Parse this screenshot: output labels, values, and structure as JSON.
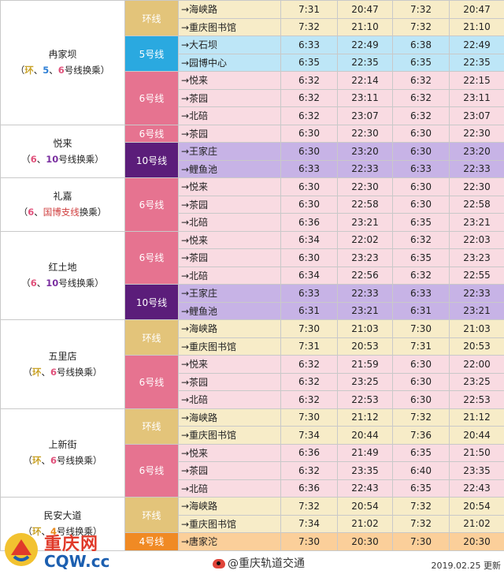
{
  "stations": [
    {
      "name": "冉家坝",
      "transfer": [
        {
          "t": "（",
          "c": ""
        },
        {
          "t": "环",
          "c": "c-loop"
        },
        {
          "t": "、",
          "c": ""
        },
        {
          "t": "5",
          "c": "c-5"
        },
        {
          "t": "、",
          "c": ""
        },
        {
          "t": "6",
          "c": "c-6"
        },
        {
          "t": "号线换乘）",
          "c": ""
        }
      ],
      "lines": [
        {
          "label": "环线",
          "color": "#e3c47a",
          "textColor": "#ffffff",
          "rows": [
            {
              "dir": "→海峡路",
              "rowColor": "#f7ecc8",
              "t": [
                "7:31",
                "20:47",
                "7:32",
                "20:47"
              ]
            },
            {
              "dir": "→重庆图书馆",
              "rowColor": "#f7ecc8",
              "t": [
                "7:32",
                "21:10",
                "7:32",
                "21:10"
              ]
            }
          ]
        },
        {
          "label": "5号线",
          "color": "#2aa9e0",
          "textColor": "#ffffff",
          "rows": [
            {
              "dir": "→大石坝",
              "rowColor": "#bde6f7",
              "t": [
                "6:33",
                "22:49",
                "6:38",
                "22:49"
              ]
            },
            {
              "dir": "→园博中心",
              "rowColor": "#bde6f7",
              "t": [
                "6:35",
                "22:35",
                "6:35",
                "22:35"
              ]
            }
          ]
        },
        {
          "label": "6号线",
          "color": "#e67390",
          "textColor": "#ffffff",
          "rows": [
            {
              "dir": "→悦来",
              "rowColor": "#f9dbe2",
              "t": [
                "6:32",
                "22:14",
                "6:32",
                "22:15"
              ]
            },
            {
              "dir": "→茶园",
              "rowColor": "#f9dbe2",
              "t": [
                "6:32",
                "23:11",
                "6:32",
                "23:11"
              ]
            },
            {
              "dir": "→北碚",
              "rowColor": "#f9dbe2",
              "t": [
                "6:32",
                "23:07",
                "6:32",
                "23:07"
              ]
            }
          ]
        }
      ]
    },
    {
      "name": "悦来",
      "transfer": [
        {
          "t": "（",
          "c": ""
        },
        {
          "t": "6",
          "c": "c-6"
        },
        {
          "t": "、",
          "c": ""
        },
        {
          "t": "10",
          "c": "c-10"
        },
        {
          "t": "号线换乘）",
          "c": ""
        }
      ],
      "lines": [
        {
          "label": "6号线",
          "color": "#e67390",
          "textColor": "#ffffff",
          "rows": [
            {
              "dir": "→茶园",
              "rowColor": "#f9dbe2",
              "t": [
                "6:30",
                "22:30",
                "6:30",
                "22:30"
              ]
            }
          ]
        },
        {
          "label": "10号线",
          "color": "#5b1d7a",
          "textColor": "#ffffff",
          "rows": [
            {
              "dir": "→王家庄",
              "rowColor": "#c7b3e6",
              "t": [
                "6:30",
                "23:20",
                "6:30",
                "23:20"
              ]
            },
            {
              "dir": "→鲤鱼池",
              "rowColor": "#c7b3e6",
              "t": [
                "6:33",
                "22:33",
                "6:33",
                "22:33"
              ]
            }
          ]
        }
      ]
    },
    {
      "name": "礼嘉",
      "transfer": [
        {
          "t": "（",
          "c": ""
        },
        {
          "t": "6",
          "c": "c-6"
        },
        {
          "t": "、",
          "c": ""
        },
        {
          "t": "国博支线",
          "c": "c-gb"
        },
        {
          "t": "换乘）",
          "c": ""
        }
      ],
      "lines": [
        {
          "label": "6号线",
          "color": "#e67390",
          "textColor": "#ffffff",
          "rows": [
            {
              "dir": "→悦来",
              "rowColor": "#f9dbe2",
              "t": [
                "6:30",
                "22:30",
                "6:30",
                "22:30"
              ]
            },
            {
              "dir": "→茶园",
              "rowColor": "#f9dbe2",
              "t": [
                "6:30",
                "22:58",
                "6:30",
                "22:58"
              ]
            },
            {
              "dir": "→北碚",
              "rowColor": "#f9dbe2",
              "t": [
                "6:36",
                "23:21",
                "6:35",
                "23:21"
              ]
            }
          ]
        }
      ]
    },
    {
      "name": "红土地",
      "transfer": [
        {
          "t": "（",
          "c": ""
        },
        {
          "t": "6",
          "c": "c-6"
        },
        {
          "t": "、",
          "c": ""
        },
        {
          "t": "10",
          "c": "c-10"
        },
        {
          "t": "号线换乘）",
          "c": ""
        }
      ],
      "lines": [
        {
          "label": "6号线",
          "color": "#e67390",
          "textColor": "#ffffff",
          "rows": [
            {
              "dir": "→悦来",
              "rowColor": "#f9dbe2",
              "t": [
                "6:34",
                "22:02",
                "6:32",
                "22:03"
              ]
            },
            {
              "dir": "→茶园",
              "rowColor": "#f9dbe2",
              "t": [
                "6:30",
                "23:23",
                "6:35",
                "23:23"
              ]
            },
            {
              "dir": "→北碚",
              "rowColor": "#f9dbe2",
              "t": [
                "6:34",
                "22:56",
                "6:32",
                "22:55"
              ]
            }
          ]
        },
        {
          "label": "10号线",
          "color": "#5b1d7a",
          "textColor": "#ffffff",
          "rows": [
            {
              "dir": "→王家庄",
              "rowColor": "#c7b3e6",
              "t": [
                "6:33",
                "22:33",
                "6:33",
                "22:33"
              ]
            },
            {
              "dir": "→鲤鱼池",
              "rowColor": "#c7b3e6",
              "t": [
                "6:31",
                "23:21",
                "6:31",
                "23:21"
              ]
            }
          ]
        }
      ]
    },
    {
      "name": "五里店",
      "transfer": [
        {
          "t": "（",
          "c": ""
        },
        {
          "t": "环",
          "c": "c-loop"
        },
        {
          "t": "、",
          "c": ""
        },
        {
          "t": "6",
          "c": "c-6"
        },
        {
          "t": "号线换乘）",
          "c": ""
        }
      ],
      "lines": [
        {
          "label": "环线",
          "color": "#e3c47a",
          "textColor": "#ffffff",
          "rows": [
            {
              "dir": "→海峡路",
              "rowColor": "#f7ecc8",
              "t": [
                "7:30",
                "21:03",
                "7:30",
                "21:03"
              ]
            },
            {
              "dir": "→重庆图书馆",
              "rowColor": "#f7ecc8",
              "t": [
                "7:31",
                "20:53",
                "7:31",
                "20:53"
              ]
            }
          ]
        },
        {
          "label": "6号线",
          "color": "#e67390",
          "textColor": "#ffffff",
          "rows": [
            {
              "dir": "→悦来",
              "rowColor": "#f9dbe2",
              "t": [
                "6:32",
                "21:59",
                "6:30",
                "22:00"
              ]
            },
            {
              "dir": "→茶园",
              "rowColor": "#f9dbe2",
              "t": [
                "6:32",
                "23:25",
                "6:30",
                "23:25"
              ]
            },
            {
              "dir": "→北碚",
              "rowColor": "#f9dbe2",
              "t": [
                "6:32",
                "22:53",
                "6:30",
                "22:53"
              ]
            }
          ]
        }
      ]
    },
    {
      "name": "上新街",
      "transfer": [
        {
          "t": "（",
          "c": ""
        },
        {
          "t": "环",
          "c": "c-loop"
        },
        {
          "t": "、",
          "c": ""
        },
        {
          "t": "6",
          "c": "c-6"
        },
        {
          "t": "号线换乘）",
          "c": ""
        }
      ],
      "lines": [
        {
          "label": "环线",
          "color": "#e3c47a",
          "textColor": "#ffffff",
          "rows": [
            {
              "dir": "→海峡路",
              "rowColor": "#f7ecc8",
              "t": [
                "7:30",
                "21:12",
                "7:32",
                "21:12"
              ]
            },
            {
              "dir": "→重庆图书馆",
              "rowColor": "#f7ecc8",
              "t": [
                "7:34",
                "20:44",
                "7:36",
                "20:44"
              ]
            }
          ]
        },
        {
          "label": "6号线",
          "color": "#e67390",
          "textColor": "#ffffff",
          "rows": [
            {
              "dir": "→悦来",
              "rowColor": "#f9dbe2",
              "t": [
                "6:36",
                "21:49",
                "6:35",
                "21:50"
              ]
            },
            {
              "dir": "→茶园",
              "rowColor": "#f9dbe2",
              "t": [
                "6:32",
                "23:35",
                "6:40",
                "23:35"
              ]
            },
            {
              "dir": "→北碚",
              "rowColor": "#f9dbe2",
              "t": [
                "6:36",
                "22:43",
                "6:35",
                "22:43"
              ]
            }
          ]
        }
      ]
    },
    {
      "name": "民安大道",
      "transfer": [
        {
          "t": "（",
          "c": ""
        },
        {
          "t": "环",
          "c": "c-loop"
        },
        {
          "t": "、",
          "c": ""
        },
        {
          "t": "4",
          "c": "c-4"
        },
        {
          "t": "号线换乘）",
          "c": ""
        }
      ],
      "lines": [
        {
          "label": "环线",
          "color": "#e3c47a",
          "textColor": "#ffffff",
          "rows": [
            {
              "dir": "→海峡路",
              "rowColor": "#f7ecc8",
              "t": [
                "7:32",
                "20:54",
                "7:32",
                "20:54"
              ]
            },
            {
              "dir": "→重庆图书馆",
              "rowColor": "#f7ecc8",
              "t": [
                "7:34",
                "21:02",
                "7:32",
                "21:02"
              ]
            }
          ]
        },
        {
          "label": "4号线",
          "color": "#f08a24",
          "textColor": "#ffffff",
          "rows": [
            {
              "dir": "→唐家沱",
              "rowColor": "#fbcf9a",
              "t": [
                "7:30",
                "20:30",
                "7:30",
                "20:30"
              ]
            }
          ]
        }
      ]
    }
  ],
  "footer": {
    "weibo": "@重庆轨道交通",
    "updated": "2019.02.25 更新",
    "logo_cn": "重庆网",
    "logo_en": "CQW.cc"
  }
}
